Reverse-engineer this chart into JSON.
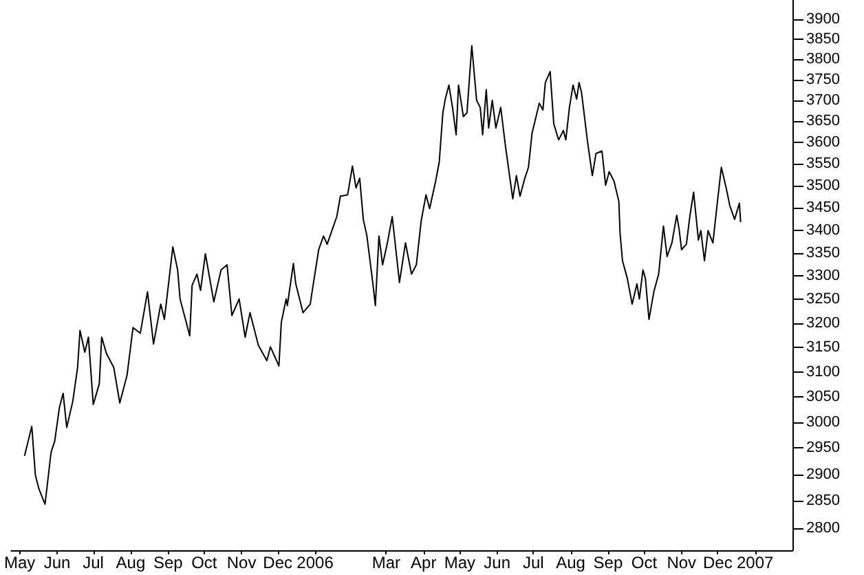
{
  "chart_data": {
    "type": "line",
    "color": "#000000",
    "log": true,
    "xlim": [
      "2005-04-24",
      "2007-02-01"
    ],
    "ylim": [
      2760,
      3950
    ],
    "xticks": [
      {
        "value": "2005-05-01",
        "label": "May"
      },
      {
        "value": "2005-06-01",
        "label": "Jun"
      },
      {
        "value": "2005-07-01",
        "label": "Jul"
      },
      {
        "value": "2005-08-01",
        "label": "Aug"
      },
      {
        "value": "2005-09-01",
        "label": "Sep"
      },
      {
        "value": "2005-10-01",
        "label": "Oct"
      },
      {
        "value": "2005-11-01",
        "label": "Nov"
      },
      {
        "value": "2005-12-01",
        "label": "Dec"
      },
      {
        "value": "2006-01-01",
        "label": "2006"
      },
      {
        "value": "2006-03-01",
        "label": "Mar"
      },
      {
        "value": "2006-04-01",
        "label": "Apr"
      },
      {
        "value": "2006-05-01",
        "label": "May"
      },
      {
        "value": "2006-06-01",
        "label": "Jun"
      },
      {
        "value": "2006-07-01",
        "label": "Jul"
      },
      {
        "value": "2006-08-01",
        "label": "Aug"
      },
      {
        "value": "2006-09-01",
        "label": "Sep"
      },
      {
        "value": "2006-10-01",
        "label": "Oct"
      },
      {
        "value": "2006-11-01",
        "label": "Nov"
      },
      {
        "value": "2006-12-01",
        "label": "Dec"
      },
      {
        "value": "2007-01-01",
        "label": "2007"
      }
    ],
    "yticks": [
      2800,
      2850,
      2900,
      2950,
      3000,
      3050,
      3100,
      3150,
      3200,
      3250,
      3300,
      3350,
      3400,
      3450,
      3500,
      3550,
      3600,
      3650,
      3700,
      3750,
      3800,
      3850,
      3900
    ],
    "x": [
      "2005-05-05",
      "2005-05-11",
      "2005-05-14",
      "2005-05-17",
      "2005-05-22",
      "2005-05-27",
      "2005-05-30",
      "2005-06-03",
      "2005-06-06",
      "2005-06-09",
      "2005-06-14",
      "2005-06-18",
      "2005-06-20",
      "2005-06-24",
      "2005-06-27",
      "2005-07-01",
      "2005-07-06",
      "2005-07-08",
      "2005-07-12",
      "2005-07-18",
      "2005-07-23",
      "2005-07-29",
      "2005-08-03",
      "2005-08-09",
      "2005-08-15",
      "2005-08-20",
      "2005-08-26",
      "2005-08-29",
      "2005-09-05",
      "2005-09-09",
      "2005-09-11",
      "2005-09-19",
      "2005-09-21",
      "2005-09-25",
      "2005-09-28",
      "2005-10-02",
      "2005-10-09",
      "2005-10-15",
      "2005-10-20",
      "2005-10-24",
      "2005-10-30",
      "2005-11-04",
      "2005-11-08",
      "2005-11-15",
      "2005-11-22",
      "2005-11-25",
      "2005-12-02",
      "2005-12-04",
      "2005-12-08",
      "2005-12-09",
      "2005-12-14",
      "2005-12-16",
      "2005-12-22",
      "2005-12-28",
      "2005-12-30",
      "2006-01-04",
      "2006-01-08",
      "2006-01-11",
      "2006-01-19",
      "2006-01-22",
      "2006-01-28",
      "2006-02-01",
      "2006-02-04",
      "2006-02-07",
      "2006-02-10",
      "2006-02-13",
      "2006-02-18",
      "2006-02-20",
      "2006-02-23",
      "2006-02-26",
      "2006-03-02",
      "2006-03-06",
      "2006-03-12",
      "2006-03-17",
      "2006-03-22",
      "2006-03-26",
      "2006-03-30",
      "2006-04-03",
      "2006-04-06",
      "2006-04-11",
      "2006-04-14",
      "2006-04-17",
      "2006-04-19",
      "2006-04-22",
      "2006-04-25",
      "2006-04-28",
      "2006-04-30",
      "2006-05-04",
      "2006-05-07",
      "2006-05-11",
      "2006-05-15",
      "2006-05-18",
      "2006-05-20",
      "2006-05-23",
      "2006-05-25",
      "2006-05-28",
      "2006-05-31",
      "2006-06-04",
      "2006-06-08",
      "2006-06-14",
      "2006-06-17",
      "2006-06-20",
      "2006-06-24",
      "2006-06-27",
      "2006-06-30",
      "2006-07-06",
      "2006-07-09",
      "2006-07-11",
      "2006-07-15",
      "2006-07-18",
      "2006-07-22",
      "2006-07-26",
      "2006-07-28",
      "2006-07-31",
      "2006-08-03",
      "2006-08-06",
      "2006-08-08",
      "2006-08-10",
      "2006-08-15",
      "2006-08-19",
      "2006-08-22",
      "2006-08-27",
      "2006-08-30",
      "2006-09-02",
      "2006-09-06",
      "2006-09-10",
      "2006-09-11",
      "2006-09-13",
      "2006-09-17",
      "2006-09-21",
      "2006-09-25",
      "2006-09-27",
      "2006-09-30",
      "2006-10-02",
      "2006-10-05",
      "2006-10-09",
      "2006-10-13",
      "2006-10-17",
      "2006-10-20",
      "2006-10-24",
      "2006-10-28",
      "2006-10-30",
      "2006-11-01",
      "2006-11-05",
      "2006-11-08",
      "2006-11-11",
      "2006-11-15",
      "2006-11-17",
      "2006-11-20",
      "2006-11-23",
      "2006-11-27",
      "2006-11-30",
      "2006-12-04",
      "2006-12-08",
      "2006-12-11",
      "2006-12-15",
      "2006-12-19",
      "2006-12-20"
    ],
    "values": [
      2935,
      2992,
      2898,
      2872,
      2844,
      2942,
      2963,
      3030,
      3057,
      2990,
      3041,
      3109,
      3185,
      3140,
      3171,
      3035,
      3076,
      3171,
      3137,
      3109,
      3038,
      3093,
      3191,
      3179,
      3266,
      3157,
      3240,
      3208,
      3363,
      3313,
      3251,
      3174,
      3280,
      3304,
      3269,
      3348,
      3245,
      3313,
      3324,
      3216,
      3251,
      3171,
      3222,
      3154,
      3123,
      3151,
      3112,
      3202,
      3251,
      3237,
      3327,
      3283,
      3222,
      3240,
      3274,
      3357,
      3387,
      3369,
      3430,
      3476,
      3479,
      3545,
      3495,
      3517,
      3424,
      3387,
      3283,
      3237,
      3387,
      3324,
      3372,
      3430,
      3286,
      3372,
      3304,
      3324,
      3420,
      3479,
      3448,
      3510,
      3554,
      3670,
      3703,
      3737,
      3683,
      3618,
      3737,
      3661,
      3670,
      3834,
      3700,
      3683,
      3618,
      3726,
      3634,
      3700,
      3634,
      3683,
      3590,
      3470,
      3523,
      3476,
      3517,
      3542,
      3622,
      3693,
      3677,
      3743,
      3770,
      3644,
      3606,
      3628,
      3606,
      3683,
      3737,
      3703,
      3743,
      3720,
      3602,
      3523,
      3574,
      3580,
      3501,
      3532,
      3510,
      3464,
      3393,
      3333,
      3295,
      3240,
      3283,
      3251,
      3313,
      3295,
      3208,
      3266,
      3304,
      3409,
      3342,
      3372,
      3433,
      3402,
      3357,
      3369,
      3433,
      3485,
      3378,
      3399,
      3333,
      3399,
      3372,
      3445,
      3542,
      3495,
      3455,
      3424,
      3460,
      3418
    ]
  }
}
